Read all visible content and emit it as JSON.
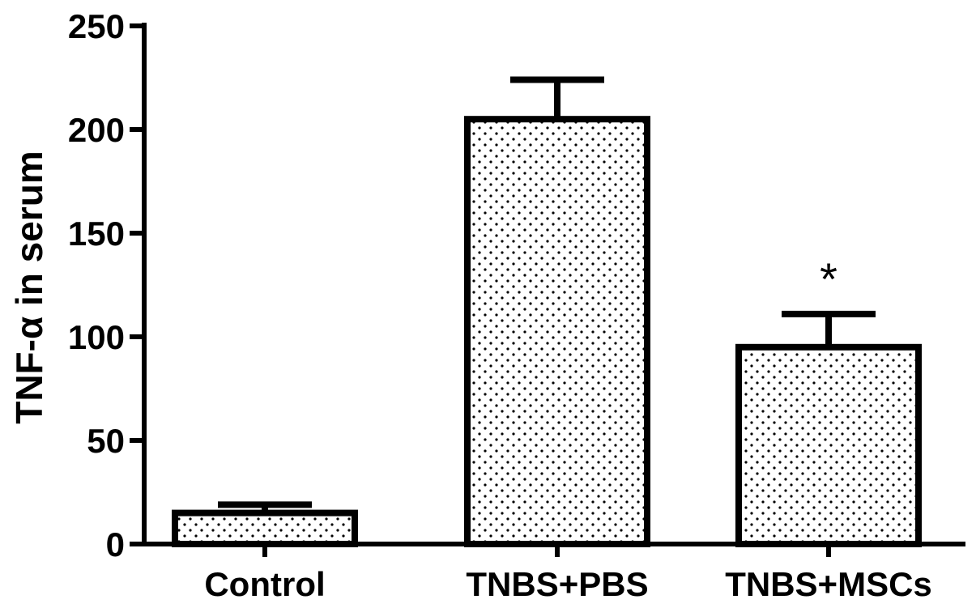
{
  "chart_data": {
    "type": "bar",
    "title": "",
    "xlabel": "",
    "ylabel": "TNF-α in serum",
    "categories": [
      "Control",
      "TNBS+PBS",
      "TNBS+MSCs"
    ],
    "values": [
      15,
      205,
      95
    ],
    "error_upper": [
      19,
      224,
      111
    ],
    "ylim": [
      0,
      250
    ],
    "yticks": [
      "0",
      "50",
      "100",
      "150",
      "200",
      "250"
    ],
    "annotations": [
      {
        "category": "TNBS+MSCs",
        "text": "*"
      }
    ],
    "bar_fill": "dotted",
    "colors": {
      "stroke": "#000000",
      "fill": "#ffffff",
      "dots": "#000000"
    },
    "grid": false,
    "legend": "none"
  }
}
